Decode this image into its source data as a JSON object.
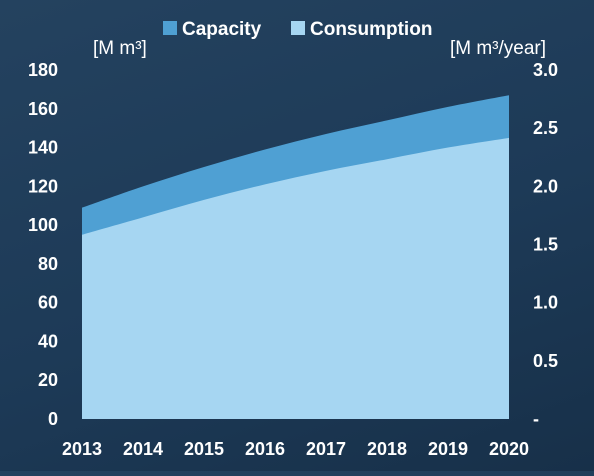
{
  "chart_data": {
    "type": "area",
    "x": [
      2013,
      2014,
      2015,
      2016,
      2017,
      2018,
      2019,
      2020
    ],
    "series": [
      {
        "name": "Capacity",
        "axis": "left",
        "color": "#4fa0d3",
        "values": [
          109,
          120,
          130,
          139,
          147,
          154,
          161,
          167
        ]
      },
      {
        "name": "Consumption",
        "axis": "left",
        "color": "#a6d6f2",
        "values": [
          95,
          104,
          113,
          121,
          128,
          134,
          140,
          145
        ]
      }
    ],
    "y_left": {
      "unit_label": "[M m³]",
      "range": [
        0,
        180
      ],
      "ticks": [
        "0",
        "20",
        "40",
        "60",
        "80",
        "100",
        "120",
        "140",
        "160",
        "180"
      ]
    },
    "y_right": {
      "unit_label": "[M m³/year]",
      "range": [
        0,
        3.0
      ],
      "ticks": [
        "-",
        "0.5",
        "1.0",
        "1.5",
        "2.0",
        "2.5",
        "3.0"
      ]
    },
    "x_ticks": [
      "2013",
      "2014",
      "2015",
      "2016",
      "2017",
      "2018",
      "2019",
      "2020"
    ],
    "legend_position": "top-center",
    "grid": false,
    "background_color": "#1f3c59"
  }
}
